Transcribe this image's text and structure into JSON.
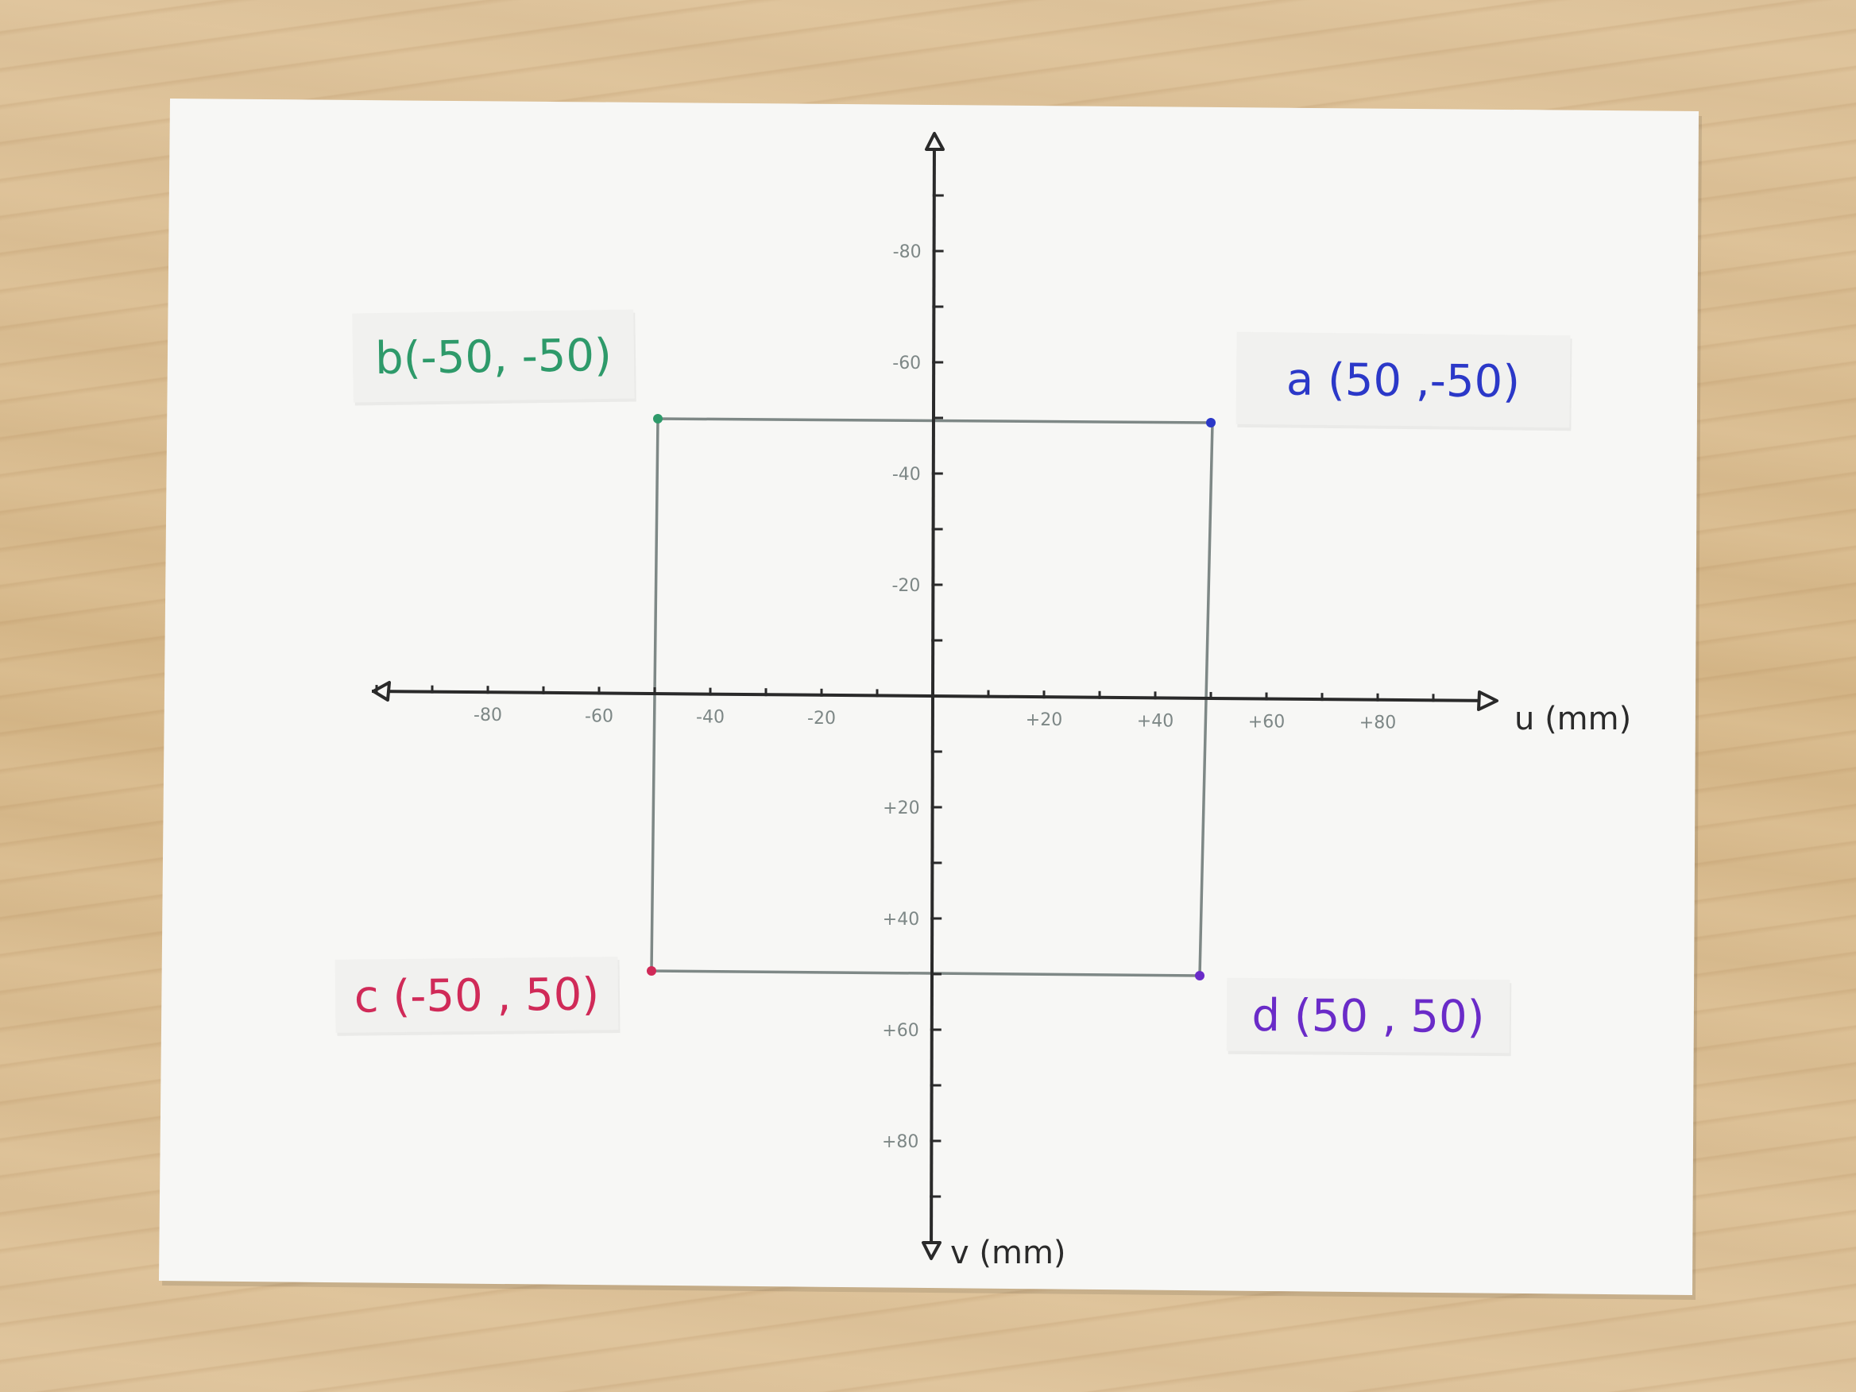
{
  "scene": {
    "description_type": "hand-drawn coordinate diagram on paper",
    "axes": {
      "u_label": "u (mm)",
      "v_label": "v (mm)",
      "u_ticks": [
        "-80",
        "-60",
        "-40",
        "-20",
        "+20",
        "+40",
        "+60",
        "+80"
      ],
      "v_ticks": [
        "-80",
        "-60",
        "-40",
        "-20",
        "+20",
        "+40",
        "+60",
        "+80"
      ]
    },
    "points": [
      {
        "id": "a",
        "label": "a (50 ,-50)",
        "u": 50,
        "v": -50,
        "color": "#2b38c8"
      },
      {
        "id": "b",
        "label": "b(-50, -50)",
        "u": -50,
        "v": -50,
        "color": "#2e9a6a"
      },
      {
        "id": "c",
        "label": "c (-50 , 50)",
        "u": -50,
        "v": 50,
        "color": "#d02a58"
      },
      {
        "id": "d",
        "label": "d (50 , 50)",
        "u": 50,
        "v": 50,
        "color": "#6a2bc8"
      }
    ],
    "colors": {
      "paper": "#f7f7f5",
      "square": "#7e8886",
      "axis": "#2a2a2a",
      "tick_label": "#7d8786"
    }
  }
}
